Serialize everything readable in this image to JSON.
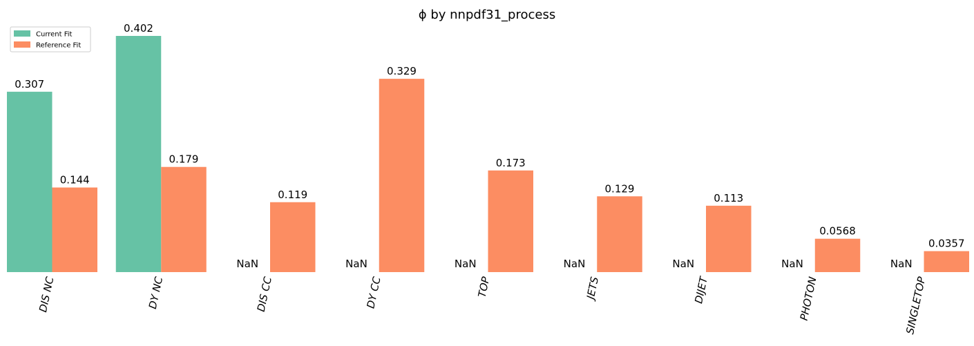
{
  "chart_data": {
    "type": "bar",
    "title": "ϕ by nnpdf31_process",
    "xlabel": "",
    "ylabel": "",
    "ylim": [
      0,
      0.402
    ],
    "grid": false,
    "legend_position": "top-left",
    "categories": [
      "DIS NC",
      "DY NC",
      "DIS CC",
      "DY CC",
      "TOP",
      "JETS",
      "DIJET",
      "PHOTON",
      "SINGLETOP"
    ],
    "series": [
      {
        "name": "Current Fit",
        "color": "#66c2a5",
        "values": [
          0.307,
          0.402,
          null,
          null,
          null,
          null,
          null,
          null,
          null
        ],
        "labels": [
          "0.307",
          "0.402",
          "NaN",
          "NaN",
          "NaN",
          "NaN",
          "NaN",
          "NaN",
          "NaN"
        ]
      },
      {
        "name": "Reference Fit",
        "color": "#fc8d62",
        "values": [
          0.144,
          0.179,
          0.119,
          0.329,
          0.173,
          0.129,
          0.113,
          0.0568,
          0.0357
        ],
        "labels": [
          "0.144",
          "0.179",
          "0.119",
          "0.329",
          "0.173",
          "0.129",
          "0.113",
          "0.0568",
          "0.0357"
        ]
      }
    ]
  }
}
